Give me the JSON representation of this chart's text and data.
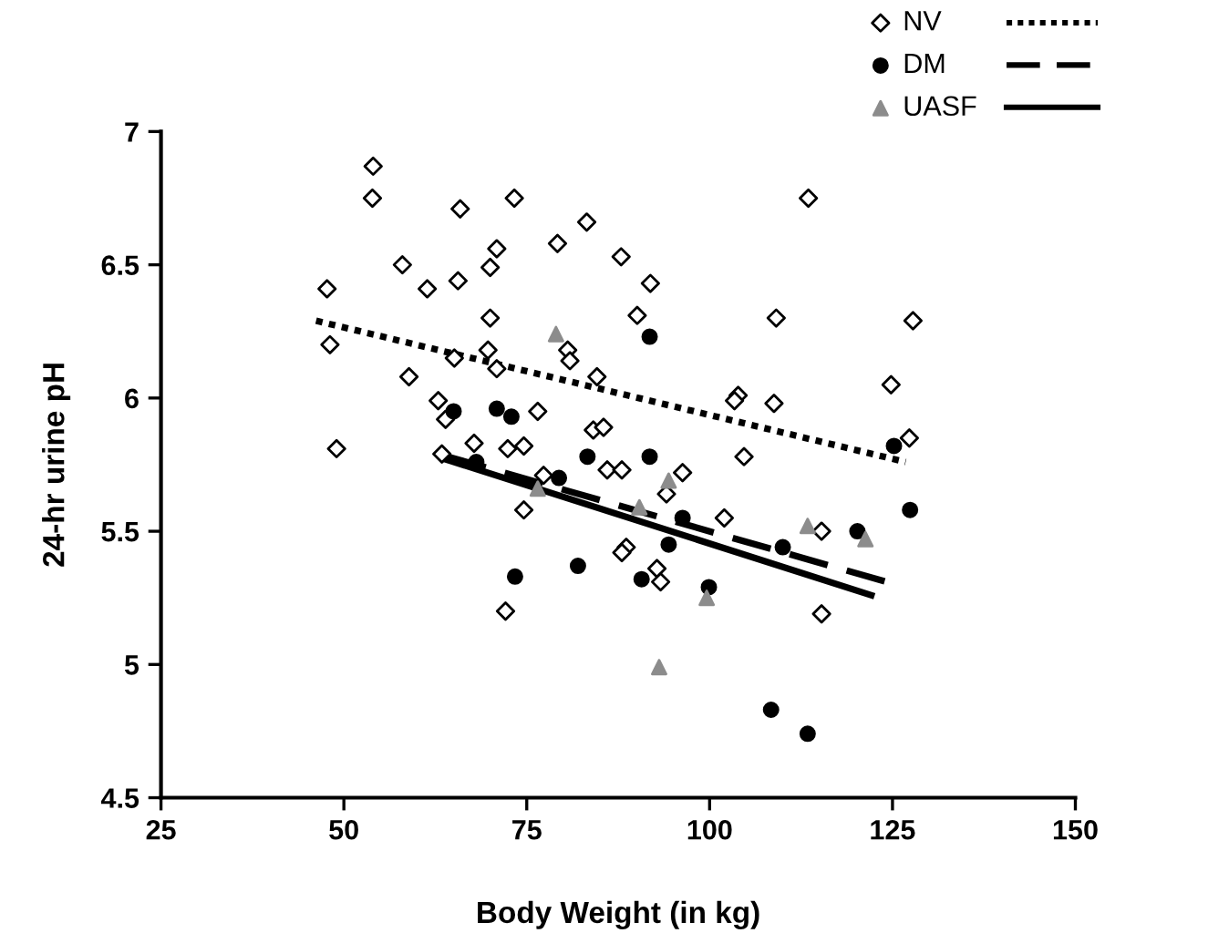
{
  "chart_data": {
    "type": "scatter",
    "xlabel": "Body Weight (in kg)",
    "ylabel": "24-hr urine pH",
    "xlim": [
      25,
      150
    ],
    "xticks": [
      25,
      50,
      75,
      100,
      125,
      150
    ],
    "ylim": [
      4.5,
      7
    ],
    "yticks": [
      4.5,
      5,
      5.5,
      6,
      6.5,
      7
    ],
    "grid": false,
    "legend": "top right",
    "series": [
      {
        "name": "NV",
        "marker": "diamond",
        "color": "#000000",
        "x": [
          54.0,
          53.9,
          65.9,
          58.0,
          47.7,
          61.4,
          65.6,
          48.1,
          65.1,
          58.9,
          62.9,
          63.9,
          49.0,
          67.8,
          63.4,
          73.3,
          113.5,
          83.2,
          79.2,
          70.9,
          70.0,
          87.9,
          91.9,
          90.1,
          109.1,
          127.8,
          70.0,
          69.7,
          80.6,
          80.9,
          70.9,
          84.6,
          103.9,
          103.4,
          108.8,
          124.8,
          127.3,
          76.5,
          72.4,
          74.6,
          84.1,
          85.5,
          104.7,
          86.0,
          88.0,
          96.3,
          77.3,
          94.1,
          74.6,
          102.0,
          115.3,
          88.6,
          88.0,
          92.8,
          93.3,
          72.1,
          115.3
        ],
        "values": [
          6.87,
          6.75,
          6.71,
          6.5,
          6.41,
          6.41,
          6.44,
          6.2,
          6.15,
          6.08,
          5.99,
          5.92,
          5.81,
          5.83,
          5.79,
          6.75,
          6.75,
          6.66,
          6.58,
          6.56,
          6.49,
          6.53,
          6.43,
          6.31,
          6.3,
          6.29,
          6.3,
          6.18,
          6.18,
          6.14,
          6.11,
          6.08,
          6.01,
          5.99,
          5.98,
          6.05,
          5.85,
          5.95,
          5.81,
          5.82,
          5.88,
          5.89,
          5.78,
          5.73,
          5.73,
          5.72,
          5.71,
          5.64,
          5.58,
          5.55,
          5.5,
          5.44,
          5.42,
          5.36,
          5.31,
          5.2,
          5.19
        ]
      },
      {
        "name": "DM",
        "marker": "circle",
        "color": "#000000",
        "x": [
          65.0,
          91.8,
          70.9,
          72.9,
          83.3,
          91.8,
          79.4,
          68.1,
          96.3,
          94.4,
          110.0,
          120.2,
          127.4,
          125.2,
          82.0,
          73.4,
          90.7,
          99.9,
          108.4,
          113.4
        ],
        "values": [
          5.95,
          6.23,
          5.96,
          5.93,
          5.78,
          5.78,
          5.7,
          5.76,
          5.55,
          5.45,
          5.44,
          5.5,
          5.58,
          5.82,
          5.37,
          5.33,
          5.32,
          5.29,
          4.83,
          4.74
        ]
      },
      {
        "name": "UASF",
        "marker": "triangle",
        "color": "#8c8c8c",
        "x": [
          79.0,
          94.4,
          76.5,
          90.4,
          113.4,
          121.3,
          99.6,
          93.1
        ],
        "values": [
          6.24,
          5.69,
          5.66,
          5.59,
          5.52,
          5.47,
          5.25,
          4.99
        ]
      },
      {
        "type": "line",
        "line_style": "dotted",
        "color": "#000000",
        "x": [
          46.2,
          126.8
        ],
        "values": [
          6.29,
          5.76
        ]
      },
      {
        "type": "line",
        "line_style": "dashed",
        "color": "#000000",
        "x": [
          64.2,
          124.2
        ],
        "values": [
          5.78,
          5.31
        ]
      },
      {
        "type": "line",
        "line_style": "solid",
        "color": "#000000",
        "x": [
          63.9,
          122.1
        ],
        "values": [
          5.77,
          5.26
        ]
      }
    ]
  }
}
